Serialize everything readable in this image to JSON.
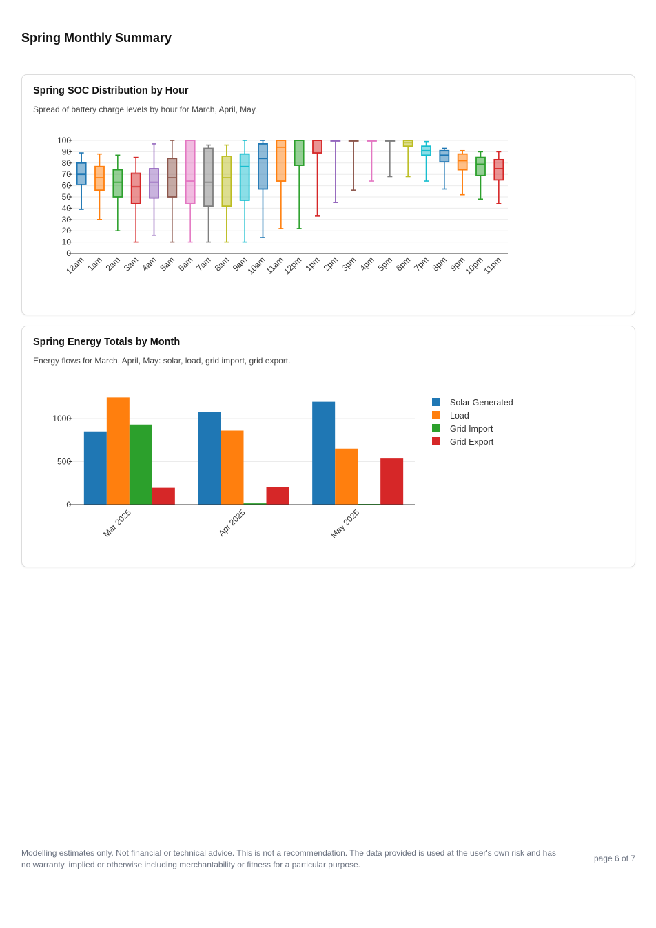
{
  "page": {
    "title": "Spring Monthly Summary",
    "footer_note": "Modelling estimates only. Not financial or technical advice. This is not a recommendation. The data provided is used at the user's own risk and has no warranty, implied or otherwise including merchantability or fitness for a particular purpose.",
    "page_number": "page 6 of 7"
  },
  "cards": [
    {
      "title": "Spring SOC Distribution by Hour",
      "subtitle": "Spread of battery charge levels by hour for March, April, May."
    },
    {
      "title": "Spring Energy Totals by Month",
      "subtitle": "Energy flows for March, April, May: solar, load, grid import, grid export."
    }
  ],
  "chart_data": [
    {
      "type": "box",
      "ylim": [
        0,
        100
      ],
      "yticks": [
        0,
        10,
        20,
        30,
        40,
        50,
        60,
        70,
        80,
        90,
        100
      ],
      "grid": true,
      "legend": "none",
      "categories": [
        "12am",
        "1am",
        "2am",
        "3am",
        "4am",
        "5am",
        "6am",
        "7am",
        "8am",
        "9am",
        "10am",
        "11am",
        "12pm",
        "1pm",
        "2pm",
        "3pm",
        "4pm",
        "5pm",
        "6pm",
        "7pm",
        "8pm",
        "9pm",
        "10pm",
        "11pm"
      ],
      "colors": [
        "#1f77b4",
        "#ff7f0e",
        "#2ca02c",
        "#d62728",
        "#9467bd",
        "#8c564b",
        "#e377c2",
        "#7f7f7f",
        "#bcbd22",
        "#17becf",
        "#1f77b4",
        "#ff7f0e",
        "#2ca02c",
        "#d62728",
        "#9467bd",
        "#8c564b",
        "#e377c2",
        "#7f7f7f",
        "#bcbd22",
        "#17becf",
        "#1f77b4",
        "#ff7f0e",
        "#2ca02c",
        "#d62728"
      ],
      "boxes": [
        {
          "min": 39,
          "q1": 61,
          "median": 70,
          "q3": 80,
          "max": 89
        },
        {
          "min": 30,
          "q1": 56,
          "median": 67,
          "q3": 77,
          "max": 88
        },
        {
          "min": 20,
          "q1": 50,
          "median": 63,
          "q3": 74,
          "max": 87
        },
        {
          "min": 10,
          "q1": 44,
          "median": 59,
          "q3": 71,
          "max": 85
        },
        {
          "min": 16,
          "q1": 49,
          "median": 63,
          "q3": 75,
          "max": 97
        },
        {
          "min": 10,
          "q1": 50,
          "median": 67,
          "q3": 84,
          "max": 100
        },
        {
          "min": 10,
          "q1": 44,
          "median": 64,
          "q3": 100,
          "max": 100
        },
        {
          "min": 10,
          "q1": 42,
          "median": 63,
          "q3": 93,
          "max": 96
        },
        {
          "min": 10,
          "q1": 42,
          "median": 67,
          "q3": 86,
          "max": 96
        },
        {
          "min": 10,
          "q1": 47,
          "median": 77,
          "q3": 88,
          "max": 100
        },
        {
          "min": 14,
          "q1": 57,
          "median": 84,
          "q3": 97,
          "max": 100
        },
        {
          "min": 22,
          "q1": 64,
          "median": 94,
          "q3": 100,
          "max": 100
        },
        {
          "min": 22,
          "q1": 78,
          "median": 100,
          "q3": 100,
          "max": 100
        },
        {
          "min": 33,
          "q1": 89,
          "median": 100,
          "q3": 100,
          "max": 100
        },
        {
          "min": 45,
          "q1": 100,
          "median": 100,
          "q3": 100,
          "max": 100
        },
        {
          "min": 56,
          "q1": 100,
          "median": 100,
          "q3": 100,
          "max": 100
        },
        {
          "min": 64,
          "q1": 100,
          "median": 100,
          "q3": 100,
          "max": 100
        },
        {
          "min": 68,
          "q1": 100,
          "median": 100,
          "q3": 100,
          "max": 100
        },
        {
          "min": 68,
          "q1": 95,
          "median": 98,
          "q3": 100,
          "max": 100
        },
        {
          "min": 64,
          "q1": 87,
          "median": 91,
          "q3": 95,
          "max": 99
        },
        {
          "min": 57,
          "q1": 81,
          "median": 87,
          "q3": 91,
          "max": 93
        },
        {
          "min": 52,
          "q1": 74,
          "median": 82,
          "q3": 88,
          "max": 91
        },
        {
          "min": 48,
          "q1": 69,
          "median": 79,
          "q3": 85,
          "max": 90
        },
        {
          "min": 44,
          "q1": 65,
          "median": 75,
          "q3": 83,
          "max": 90
        }
      ]
    },
    {
      "type": "bar",
      "categories": [
        "Mar 2025",
        "Apr 2025",
        "May 2025"
      ],
      "ylim": [
        0,
        1250
      ],
      "yticks": [
        0,
        500,
        1000
      ],
      "grid": true,
      "legend": "top-right",
      "series": [
        {
          "name": "Solar Generated",
          "color": "#1f77b4",
          "values": [
            850,
            1075,
            1195
          ]
        },
        {
          "name": "Load",
          "color": "#ff7f0e",
          "values": [
            1245,
            860,
            650
          ]
        },
        {
          "name": "Grid Import",
          "color": "#2ca02c",
          "values": [
            930,
            15,
            5
          ]
        },
        {
          "name": "Grid Export",
          "color": "#d62728",
          "values": [
            195,
            205,
            535
          ]
        }
      ]
    }
  ]
}
